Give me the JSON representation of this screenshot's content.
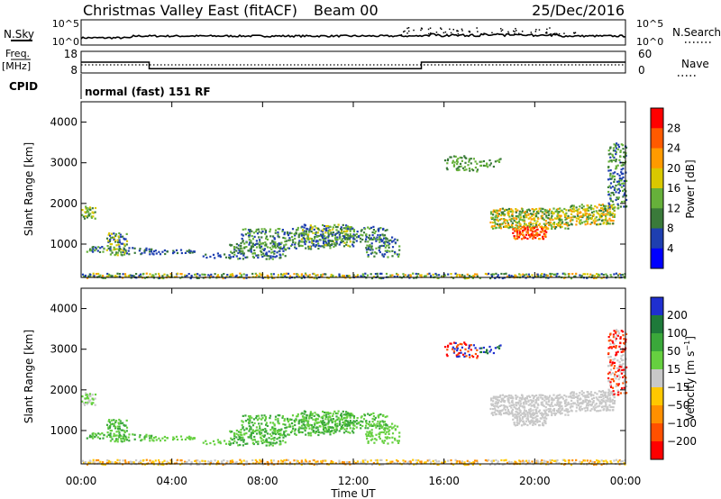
{
  "header": {
    "title": "Christmas Valley East (fitACF)",
    "beam": "Beam 00",
    "date": "25/Dec/2016"
  },
  "panel_labels": {
    "nsky": "N.Sky",
    "nsearch": "N.Search",
    "freq": "Freq.",
    "freq_unit": "[MHz]",
    "nave": "Nave",
    "cpid": "CPID",
    "cpid_value": "normal (fast) 151 RF",
    "noise_tick_top": "10^5",
    "noise_tick_bottom": "10^0",
    "freq_tick_top": "18",
    "freq_tick_bottom": "8",
    "nave_tick_top": "60",
    "nave_tick_bottom": "0"
  },
  "chart_data": [
    {
      "type": "line",
      "name": "noise",
      "series": [
        {
          "name": "N.Sky",
          "values": "piecewise-noise"
        },
        {
          "name": "N.Search",
          "values": "dotted"
        }
      ],
      "ylabel": "N.Sky",
      "y_right_label": "N.Search",
      "ylim_log": [
        0,
        5
      ]
    },
    {
      "type": "line",
      "name": "frequency",
      "series": [
        {
          "name": "Freq",
          "x": [
            0,
            3,
            3,
            15,
            15,
            24
          ],
          "values": [
            13,
            13,
            10,
            10,
            13,
            13
          ]
        },
        {
          "name": "Nave",
          "x": [
            0,
            24
          ],
          "values": [
            18,
            18
          ]
        }
      ],
      "ylim": [
        8,
        18
      ],
      "y2lim": [
        0,
        60
      ]
    },
    {
      "type": "heatmap",
      "name": "power",
      "ylabel": "Slant Range [km]",
      "ylim": [
        180,
        4500
      ],
      "xlim": [
        0,
        24
      ],
      "yticks": [
        1000,
        2000,
        3000,
        4000
      ],
      "colorbar": {
        "label": "Power [dB]",
        "ticks": [
          4,
          8,
          12,
          16,
          20,
          24,
          28
        ],
        "colors": [
          "#0000ff",
          "#1e3fb0",
          "#3a7a3a",
          "#66b03a",
          "#d9c800",
          "#ff9a00",
          "#ff5a00",
          "#ff0000"
        ]
      }
    },
    {
      "type": "heatmap",
      "name": "velocity",
      "ylabel": "Slant Range [km]",
      "xlabel": "Time UT",
      "ylim": [
        180,
        4500
      ],
      "xlim": [
        0,
        24
      ],
      "yticks": [
        1000,
        2000,
        3000,
        4000
      ],
      "xticks": [
        "00:00",
        "04:00",
        "08:00",
        "12:00",
        "16:00",
        "20:00",
        "00:00"
      ],
      "colorbar": {
        "label": "Velocity [m s^-1]",
        "ticks": [
          "200",
          "100",
          "50",
          "15",
          "−15",
          "−50",
          "−100",
          "−200"
        ],
        "colors": [
          "#1f2fd0",
          "#1e7a3a",
          "#3aa83a",
          "#66d040",
          "#c8c8c8",
          "#ffc800",
          "#ff9000",
          "#ff5000",
          "#ff0000"
        ]
      }
    }
  ]
}
